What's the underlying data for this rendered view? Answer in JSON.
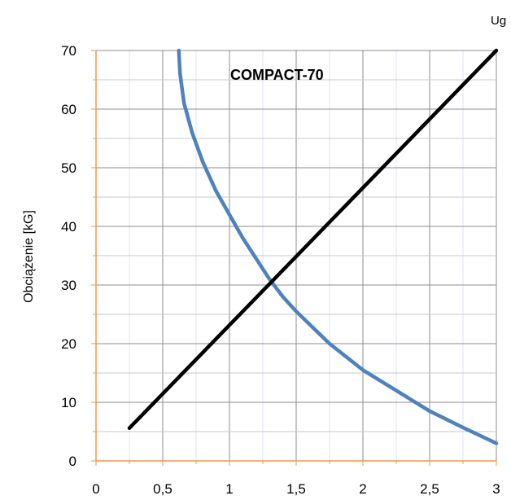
{
  "chart_data": {
    "type": "line",
    "title": "COMPACT-70",
    "corner_label": "Ug",
    "xlabel": "",
    "ylabel": "Obciążenie [kG]",
    "xlim": [
      0,
      3
    ],
    "ylim": [
      0,
      70
    ],
    "x_ticks": [
      "0",
      "0,5",
      "1",
      "1,5",
      "2",
      "2,5",
      "3"
    ],
    "y_ticks": [
      "0",
      "10",
      "20",
      "30",
      "40",
      "50",
      "60",
      "70"
    ],
    "grid": true,
    "series": [
      {
        "color": "#4f81bd",
        "x": [
          0.62,
          0.63,
          0.66,
          0.72,
          0.8,
          0.9,
          1.0,
          1.1,
          1.2,
          1.3,
          1.4,
          1.5,
          1.75,
          2.0,
          2.25,
          2.5,
          2.75,
          3.0
        ],
        "y": [
          70,
          66,
          61,
          56,
          51,
          46,
          42,
          38,
          34.5,
          31,
          28,
          25.5,
          20,
          15.5,
          12,
          8.5,
          5.7,
          3
        ]
      },
      {
        "color": "#000000",
        "x": [
          0.25,
          3.0
        ],
        "y": [
          5.6,
          70
        ]
      }
    ]
  }
}
